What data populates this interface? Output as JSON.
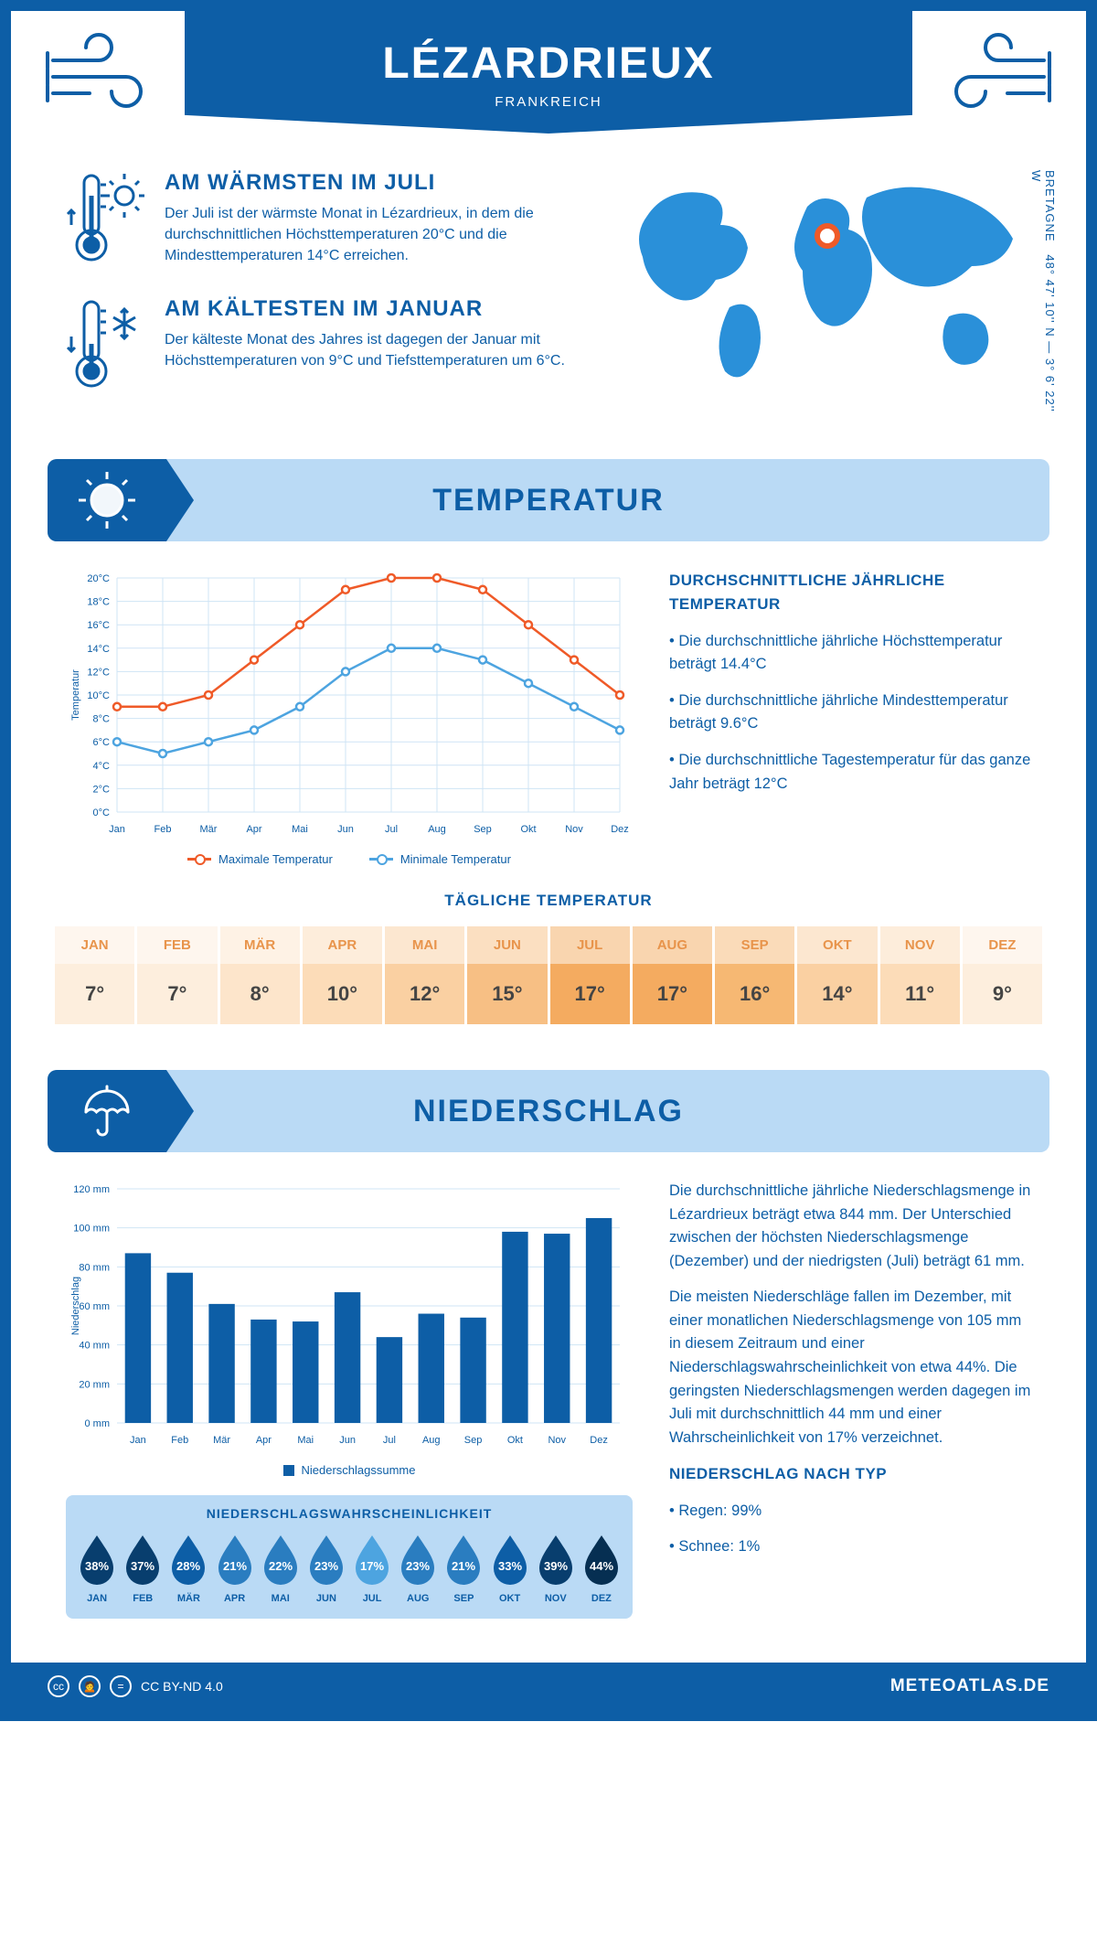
{
  "header": {
    "city": "LÉZARDRIEUX",
    "country": "FRANKREICH",
    "coords": "48° 47' 10'' N — 3° 6' 22'' W",
    "region": "BRETAGNE"
  },
  "facts": {
    "warm": {
      "title": "AM WÄRMSTEN IM JULI",
      "body": "Der Juli ist der wärmste Monat in Lézardrieux, in dem die durchschnittlichen Höchsttemperaturen 20°C und die Mindesttemperaturen 14°C erreichen."
    },
    "cold": {
      "title": "AM KÄLTESTEN IM JANUAR",
      "body": "Der kälteste Monat des Jahres ist dagegen der Januar mit Höchsttemperaturen von 9°C und Tiefsttemperaturen um 6°C."
    }
  },
  "tempSection": {
    "title": "TEMPERATUR",
    "chart": {
      "type": "line",
      "months": [
        "Jan",
        "Feb",
        "Mär",
        "Apr",
        "Mai",
        "Jun",
        "Jul",
        "Aug",
        "Sep",
        "Okt",
        "Nov",
        "Dez"
      ],
      "yAxisLabel": "Temperatur",
      "yMin": 0,
      "yMax": 20,
      "yStep": 2,
      "max": {
        "label": "Maximale Temperatur",
        "color": "#ef5a28",
        "values": [
          9,
          9,
          10,
          13,
          16,
          19,
          20,
          20,
          19,
          16,
          13,
          10
        ]
      },
      "min": {
        "label": "Minimale Temperatur",
        "color": "#4da4e0",
        "values": [
          6,
          5,
          6,
          7,
          9,
          12,
          14,
          14,
          13,
          11,
          9,
          7
        ]
      },
      "gridColor": "#cfe4f5",
      "axisFontSize": 11,
      "bg": "#ffffff"
    },
    "notes": {
      "title": "DURCHSCHNITTLICHE JÄHRLICHE TEMPERATUR",
      "p1": "• Die durchschnittliche jährliche Höchsttemperatur beträgt 14.4°C",
      "p2": "• Die durchschnittliche jährliche Mindesttemperatur beträgt 9.6°C",
      "p3": "• Die durchschnittliche Tagestemperatur für das ganze Jahr beträgt 12°C"
    },
    "daily": {
      "title": "TÄGLICHE TEMPERATUR",
      "months": [
        "JAN",
        "FEB",
        "MÄR",
        "APR",
        "MAI",
        "JUN",
        "JUL",
        "AUG",
        "SEP",
        "OKT",
        "NOV",
        "DEZ"
      ],
      "values": [
        "7°",
        "7°",
        "8°",
        "10°",
        "12°",
        "15°",
        "17°",
        "17°",
        "16°",
        "14°",
        "11°",
        "9°"
      ],
      "cellColors": [
        "#fdeedd",
        "#fdeedd",
        "#fde5cb",
        "#fcdcb8",
        "#fad0a2",
        "#f7bf84",
        "#f4ab60",
        "#f4ab60",
        "#f6b873",
        "#fad0a2",
        "#fcdcb8",
        "#fdeedd"
      ]
    }
  },
  "precipSection": {
    "title": "NIEDERSCHLAG",
    "chart": {
      "type": "bar",
      "months": [
        "Jan",
        "Feb",
        "Mär",
        "Apr",
        "Mai",
        "Jun",
        "Jul",
        "Aug",
        "Sep",
        "Okt",
        "Nov",
        "Dez"
      ],
      "yAxisLabel": "Niederschlag",
      "yMin": 0,
      "yMax": 120,
      "yStep": 20,
      "values": [
        87,
        77,
        61,
        53,
        52,
        67,
        44,
        56,
        54,
        98,
        97,
        105
      ],
      "barColor": "#0d5ea6",
      "gridColor": "#cfe4f5",
      "legend": "Niederschlagssumme"
    },
    "paras": {
      "p1": "Die durchschnittliche jährliche Niederschlagsmenge in Lézardrieux beträgt etwa 844 mm. Der Unterschied zwischen der höchsten Niederschlagsmenge (Dezember) und der niedrigsten (Juli) beträgt 61 mm.",
      "p2": "Die meisten Niederschläge fallen im Dezember, mit einer monatlichen Niederschlagsmenge von 105 mm in diesem Zeitraum und einer Niederschlagswahrscheinlichkeit von etwa 44%. Die geringsten Niederschlagsmengen werden dagegen im Juli mit durchschnittlich 44 mm und einer Wahrscheinlichkeit von 17% verzeichnet.",
      "typeTitle": "NIEDERSCHLAG NACH TYP",
      "t1": "• Regen: 99%",
      "t2": "• Schnee: 1%"
    },
    "prob": {
      "title": "NIEDERSCHLAGSWAHRSCHEINLICHKEIT",
      "months": [
        "JAN",
        "FEB",
        "MÄR",
        "APR",
        "MAI",
        "JUN",
        "JUL",
        "AUG",
        "SEP",
        "OKT",
        "NOV",
        "DEZ"
      ],
      "values": [
        "38%",
        "37%",
        "28%",
        "21%",
        "22%",
        "23%",
        "17%",
        "23%",
        "21%",
        "33%",
        "39%",
        "44%"
      ],
      "colors": [
        "#083e6e",
        "#083e6e",
        "#0d5ea6",
        "#2a7dc0",
        "#2a7dc0",
        "#2a7dc0",
        "#4da4e0",
        "#2a7dc0",
        "#2a7dc0",
        "#0d5ea6",
        "#083e6e",
        "#062f52"
      ]
    }
  },
  "footer": {
    "license": "CC BY-ND 4.0",
    "brand": "METEOATLAS.DE"
  },
  "colors": {
    "primary": "#0d5ea6",
    "light": "#badaf5",
    "accent": "#2a7dc0"
  }
}
